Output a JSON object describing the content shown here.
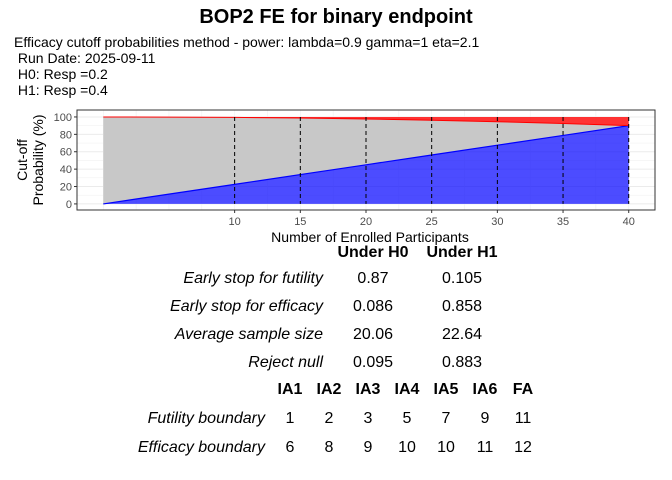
{
  "title": "BOP2 FE for binary endpoint",
  "subtitle_lines": [
    "Efficacy cutoff probabilities method - power: lambda=0.9 gamma=1 eta=2.1",
    " Run Date: 2025-09-11",
    " H0: Resp =0.2",
    " H1: Resp =0.4"
  ],
  "chart_data": {
    "type": "area",
    "xlabel": "Number of Enrolled Participants",
    "ylabel": "Cut-off Probability (%)",
    "ylabel_lines": [
      "Cut-off",
      "Probability (%)"
    ],
    "xticks": [
      10,
      15,
      20,
      25,
      30,
      35,
      40
    ],
    "yticks": [
      0,
      20,
      40,
      60,
      80,
      100
    ],
    "xlim": [
      -2,
      42
    ],
    "ylim": [
      -7,
      108
    ],
    "grid": true,
    "interim_lines": [
      10,
      15,
      20,
      25,
      30,
      35,
      40
    ],
    "x": [
      0,
      5,
      10,
      15,
      20,
      25,
      30,
      35,
      40
    ],
    "series": [
      {
        "role": "futility cutoff",
        "color": "#0000FF",
        "values": [
          0,
          11.25,
          22.5,
          33.75,
          45,
          56.25,
          67.5,
          78.75,
          90
        ]
      },
      {
        "role": "efficacy cutoff",
        "color": "#FF0000",
        "values": [
          100,
          99.87,
          99.46,
          98.73,
          97.67,
          96.27,
          94.53,
          92.44,
          90
        ]
      }
    ],
    "middle_color": "#C8C8C8"
  },
  "oc_table": {
    "headers": [
      "Under H0",
      "Under H1"
    ],
    "rows": [
      {
        "label": "Early stop for futility",
        "h0": "0.87",
        "h1": "0.105"
      },
      {
        "label": "Early stop for efficacy",
        "h0": "0.086",
        "h1": "0.858"
      },
      {
        "label": "Average sample size",
        "h0": "20.06",
        "h1": "22.64"
      },
      {
        "label": "Reject null",
        "h0": "0.095",
        "h1": "0.883"
      }
    ]
  },
  "boundary_table": {
    "headers": [
      "IA1",
      "IA2",
      "IA3",
      "IA4",
      "IA5",
      "IA6",
      "FA"
    ],
    "rows": [
      {
        "label": "Futility boundary",
        "values": [
          "1",
          "2",
          "3",
          "5",
          "7",
          "9",
          "11"
        ]
      },
      {
        "label": "Efficacy boundary",
        "values": [
          "6",
          "8",
          "9",
          "10",
          "10",
          "11",
          "12"
        ]
      }
    ]
  }
}
